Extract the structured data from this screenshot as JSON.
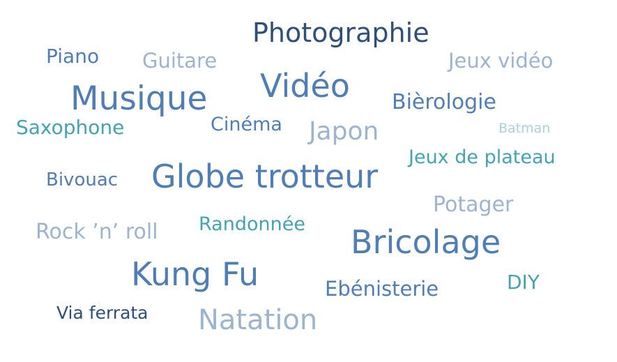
{
  "palette": {
    "navy": "#2d4f7a",
    "steel": "#4f7db5",
    "light": "#9db4d0",
    "teal": "#43a3b0",
    "pale": "#a9cfe0"
  },
  "words": [
    {
      "text": "Photographie",
      "color": "navy"
    },
    {
      "text": "Piano",
      "color": "steel"
    },
    {
      "text": "Guitare",
      "color": "light"
    },
    {
      "text": "Jeux vidéo",
      "color": "light"
    },
    {
      "text": "Vidéo",
      "color": "steel"
    },
    {
      "text": "Musique",
      "color": "steel"
    },
    {
      "text": "Bièrologie",
      "color": "steel"
    },
    {
      "text": "Saxophone",
      "color": "teal"
    },
    {
      "text": "Cinéma",
      "color": "steel"
    },
    {
      "text": "Japon",
      "color": "light"
    },
    {
      "text": "Batman",
      "color": "pale"
    },
    {
      "text": "Jeux de plateau",
      "color": "teal"
    },
    {
      "text": "Bivouac",
      "color": "steel"
    },
    {
      "text": "Globe trotteur",
      "color": "steel"
    },
    {
      "text": "Potager",
      "color": "light"
    },
    {
      "text": "Rock ’n’ roll",
      "color": "light"
    },
    {
      "text": "Randonnée",
      "color": "teal"
    },
    {
      "text": "Bricolage",
      "color": "steel"
    },
    {
      "text": "Kung Fu",
      "color": "steel"
    },
    {
      "text": "DIY",
      "color": "teal"
    },
    {
      "text": "Ebénisterie",
      "color": "steel"
    },
    {
      "text": "Via ferrata",
      "color": "navy"
    },
    {
      "text": "Natation",
      "color": "light"
    }
  ]
}
